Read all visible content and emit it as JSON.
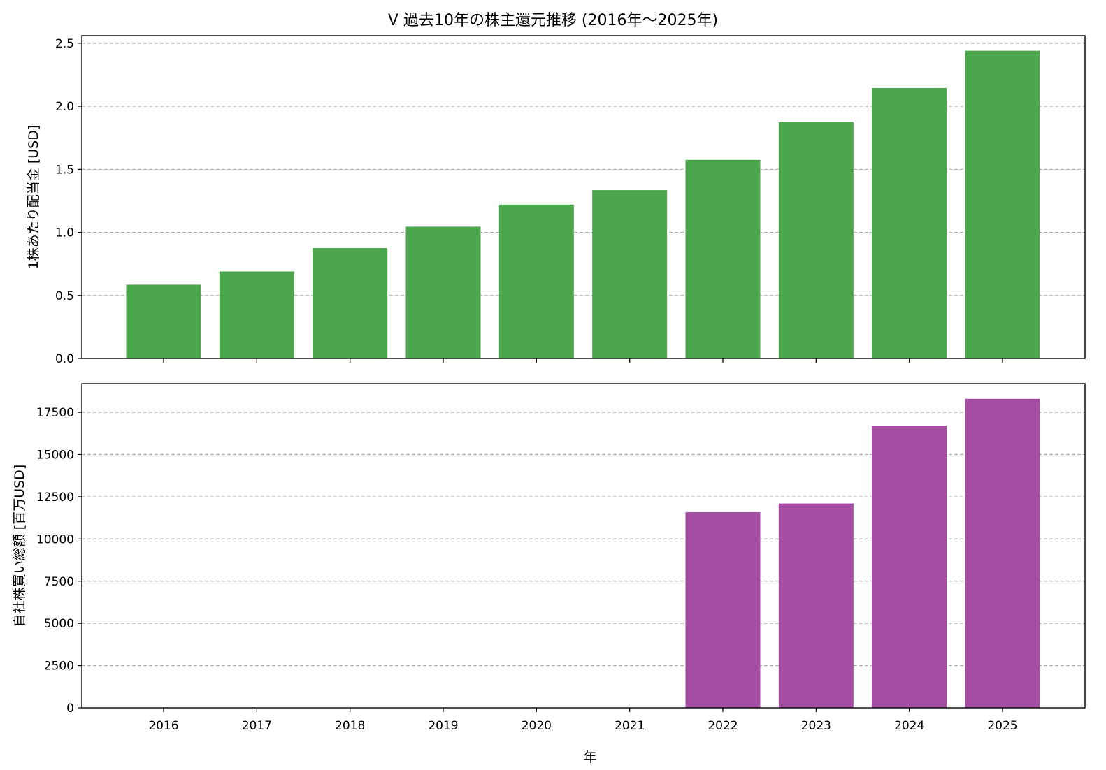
{
  "chart_data": {
    "title": "V 過去10年の株主還元推移 (2016年～2025年)",
    "xlabel": "年",
    "categories": [
      "2016",
      "2017",
      "2018",
      "2019",
      "2020",
      "2021",
      "2022",
      "2023",
      "2024",
      "2025"
    ],
    "panels": [
      {
        "type": "bar",
        "ylabel": "1株あたり配当金 [USD]",
        "ylim": [
          0,
          2.56
        ],
        "yticks": [
          "0.0",
          "0.5",
          "1.0",
          "1.5",
          "2.0",
          "2.5"
        ],
        "grid": "y-dashed",
        "color": "#4ca64c",
        "values": [
          0.585,
          0.69,
          0.875,
          1.045,
          1.22,
          1.335,
          1.575,
          1.875,
          2.145,
          2.44
        ]
      },
      {
        "type": "bar",
        "ylabel": "自社株買い総額 [百万USD]",
        "ylim": [
          0,
          19200
        ],
        "yticks": [
          "0",
          "2500",
          "5000",
          "7500",
          "10000",
          "12500",
          "15000",
          "17500"
        ],
        "grid": "y-dashed",
        "color": "#a54ca5",
        "values": [
          0,
          0,
          0,
          0,
          0,
          0,
          11590,
          12100,
          16710,
          18300
        ]
      }
    ]
  }
}
